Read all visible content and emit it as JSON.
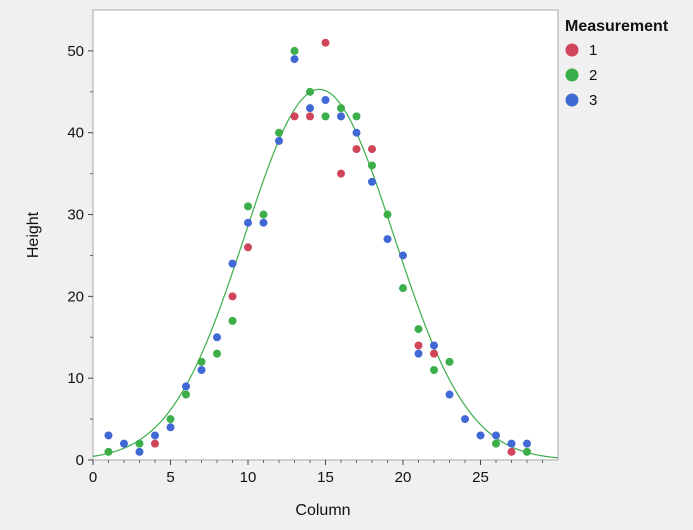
{
  "chart_data": {
    "type": "scatter",
    "title": "",
    "xlabel": "Column",
    "ylabel": "Height",
    "xlim": [
      0,
      30
    ],
    "ylim": [
      0,
      55
    ],
    "x_ticks": [
      0,
      5,
      10,
      15,
      20,
      25
    ],
    "y_ticks": [
      0,
      10,
      20,
      30,
      40,
      50
    ],
    "grid": false,
    "legend": {
      "title": "Measurement",
      "position": "top-right"
    },
    "series": [
      {
        "name": "1",
        "color": "#d0455a",
        "points": [
          [
            4,
            2
          ],
          [
            9,
            20
          ],
          [
            10,
            26
          ],
          [
            13,
            42
          ],
          [
            14,
            42
          ],
          [
            15,
            51
          ],
          [
            16,
            35
          ],
          [
            17,
            38
          ],
          [
            18,
            38
          ],
          [
            21,
            14
          ],
          [
            22,
            13
          ],
          [
            27,
            1
          ]
        ]
      },
      {
        "name": "2",
        "color": "#3cae4a",
        "points": [
          [
            1,
            1
          ],
          [
            3,
            2
          ],
          [
            5,
            5
          ],
          [
            6,
            8
          ],
          [
            7,
            12
          ],
          [
            8,
            13
          ],
          [
            9,
            17
          ],
          [
            10,
            31
          ],
          [
            11,
            30
          ],
          [
            12,
            40
          ],
          [
            13,
            50
          ],
          [
            14,
            45
          ],
          [
            15,
            42
          ],
          [
            16,
            43
          ],
          [
            17,
            42
          ],
          [
            18,
            36
          ],
          [
            19,
            30
          ],
          [
            20,
            21
          ],
          [
            21,
            16
          ],
          [
            22,
            11
          ],
          [
            23,
            12
          ],
          [
            26,
            2
          ],
          [
            28,
            1
          ]
        ]
      },
      {
        "name": "3",
        "color": "#4169d6",
        "points": [
          [
            1,
            3
          ],
          [
            2,
            2
          ],
          [
            3,
            1
          ],
          [
            4,
            3
          ],
          [
            5,
            4
          ],
          [
            6,
            9
          ],
          [
            7,
            11
          ],
          [
            8,
            15
          ],
          [
            9,
            24
          ],
          [
            10,
            29
          ],
          [
            11,
            29
          ],
          [
            12,
            39
          ],
          [
            13,
            49
          ],
          [
            14,
            43
          ],
          [
            15,
            44
          ],
          [
            16,
            42
          ],
          [
            17,
            40
          ],
          [
            18,
            34
          ],
          [
            19,
            27
          ],
          [
            20,
            25
          ],
          [
            21,
            13
          ],
          [
            22,
            14
          ],
          [
            23,
            8
          ],
          [
            24,
            5
          ],
          [
            25,
            3
          ],
          [
            26,
            3
          ],
          [
            27,
            2
          ],
          [
            28,
            2
          ]
        ]
      }
    ],
    "fit_curve": {
      "type": "normal",
      "color": "#3cae4a",
      "peak": 45.3,
      "mean": 14.6,
      "sd": 4.8
    }
  }
}
